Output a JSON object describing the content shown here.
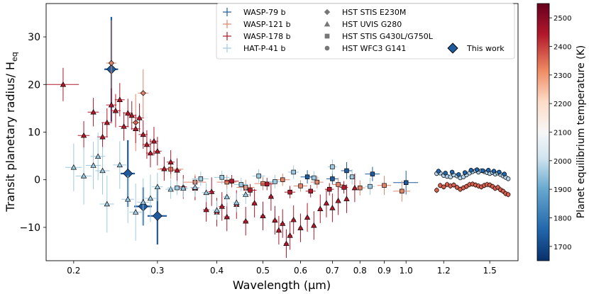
{
  "chart_data": {
    "type": "scatter",
    "xlabel": "Wavelength (μm)",
    "ylabel_main": "Transit planetary radius/ H",
    "ylabel_sub": "eq",
    "xscale": "log",
    "xlim": [
      0.175,
      1.72
    ],
    "ylim": [
      -17,
      37
    ],
    "xticks": [
      0.2,
      0.3,
      0.4,
      0.5,
      0.6,
      0.7,
      0.8,
      0.9,
      1.0,
      1.2,
      1.5
    ],
    "xtick_labels": [
      "0.2",
      "0.3",
      "0.4",
      "0.5",
      "0.6",
      "0.7",
      "0.8",
      "0.9",
      "1.0",
      "1.2",
      "1.5"
    ],
    "yticks": [
      -10,
      0,
      10,
      20,
      30
    ],
    "ytick_labels": [
      "−10",
      "0",
      "10",
      "20",
      "30"
    ],
    "legend_loc": "top-right",
    "planet_legend": [
      {
        "name": "WASP-79 b",
        "color": "#1f5a9d"
      },
      {
        "name": "WASP-121 b",
        "color": "#e0856a"
      },
      {
        "name": "WASP-178 b",
        "color": "#b2182b"
      },
      {
        "name": "HAT-P-41 b",
        "color": "#9ecae1"
      }
    ],
    "instrument_legend": [
      {
        "name": "HST STIS E230M",
        "marker": "diamond"
      },
      {
        "name": "HST UVIS G280",
        "marker": "triangle"
      },
      {
        "name": "HST STIS G430L/G750L",
        "marker": "square"
      },
      {
        "name": "HST WFC3 G141",
        "marker": "circle"
      }
    ],
    "this_work_label": "This work",
    "colorbar": {
      "label": "Planet equilibrium temperature (K)",
      "range": [
        1650,
        2550
      ],
      "ticks": [
        1700,
        1800,
        1900,
        2000,
        2100,
        2200,
        2300,
        2400,
        2500
      ],
      "tick_labels": [
        "1700",
        "1800",
        "1900",
        "2000",
        "2100",
        "2200",
        "2300",
        "2400",
        "2500"
      ]
    },
    "series": [
      {
        "name": "WASP-79 b",
        "color": "#1f5a9d",
        "marker": "diamond",
        "this_work": true,
        "points": [
          [
            0.24,
            23.2,
            11,
            0.008
          ],
          [
            0.26,
            1.3,
            7,
            0.009
          ],
          [
            0.28,
            -5.6,
            4,
            0.012
          ],
          [
            0.3,
            -7.6,
            6,
            0.014
          ]
        ]
      },
      {
        "name": "WASP-79 b",
        "color": "#1f5a9d",
        "marker": "square",
        "points": [
          [
            0.62,
            0.6,
            1.4,
            0.02
          ],
          [
            0.7,
            0.2,
            1.2,
            0.02
          ],
          [
            0.75,
            1.9,
            1.8,
            0.02
          ],
          [
            0.85,
            1.2,
            1.5,
            0.03
          ],
          [
            1.0,
            -0.6,
            2.5,
            0.06
          ]
        ]
      },
      {
        "name": "WASP-121 b",
        "color": "#e0856a",
        "marker": "diamond",
        "points": [
          [
            0.24,
            24.5,
            9,
            0.006
          ],
          [
            0.28,
            18.2,
            5,
            0.007
          ],
          [
            0.27,
            12.0,
            6,
            0.006
          ]
        ]
      },
      {
        "name": "WASP-121 b",
        "color": "#e0856a",
        "marker": "square",
        "points": [
          [
            0.32,
            2.2,
            2,
            0.02
          ],
          [
            0.36,
            -0.5,
            1.6,
            0.02
          ],
          [
            0.42,
            -0.5,
            1.5,
            0.02
          ],
          [
            0.46,
            -1.6,
            1.6,
            0.02
          ],
          [
            0.5,
            -0.8,
            1.4,
            0.02
          ],
          [
            0.55,
            0.0,
            1.3,
            0.02
          ],
          [
            0.6,
            -1.3,
            1.2,
            0.02
          ],
          [
            0.65,
            -0.5,
            1.3,
            0.02
          ],
          [
            0.72,
            -1.0,
            1.4,
            0.02
          ],
          [
            0.8,
            -1.7,
            1.6,
            0.02
          ],
          [
            0.9,
            -1.2,
            2.0,
            0.03
          ],
          [
            0.98,
            -2.4,
            2.2,
            0.04
          ]
        ]
      },
      {
        "name": "WASP-121 b",
        "color": "#d6604d",
        "marker": "circle",
        "points": [
          [
            1.16,
            -2.2,
            0.6,
            0
          ],
          [
            1.18,
            -1.2,
            0.6,
            0
          ],
          [
            1.2,
            -1.5,
            0.6,
            0
          ],
          [
            1.22,
            -1.0,
            0.6,
            0
          ],
          [
            1.24,
            -1.3,
            0.6,
            0
          ],
          [
            1.26,
            -1.1,
            0.6,
            0
          ],
          [
            1.28,
            -1.6,
            0.6,
            0
          ],
          [
            1.3,
            -2.0,
            0.6,
            0
          ],
          [
            1.32,
            -1.7,
            0.6,
            0
          ],
          [
            1.34,
            -1.4,
            0.6,
            0
          ],
          [
            1.36,
            -1.0,
            0.6,
            0
          ],
          [
            1.38,
            -0.9,
            0.6,
            0
          ],
          [
            1.4,
            -1.1,
            0.6,
            0
          ],
          [
            1.42,
            -1.3,
            0.6,
            0
          ],
          [
            1.44,
            -1.5,
            0.6,
            0
          ],
          [
            1.46,
            -1.2,
            0.6,
            0
          ],
          [
            1.48,
            -1.0,
            0.6,
            0
          ],
          [
            1.5,
            -1.1,
            0.6,
            0
          ],
          [
            1.52,
            -1.4,
            0.6,
            0
          ],
          [
            1.54,
            -1.8,
            0.6,
            0
          ],
          [
            1.56,
            -1.6,
            0.6,
            0
          ],
          [
            1.58,
            -2.1,
            0.6,
            0
          ],
          [
            1.6,
            -2.4,
            0.6,
            0
          ],
          [
            1.62,
            -2.9,
            0.6,
            0
          ],
          [
            1.64,
            -3.1,
            0.6,
            0
          ]
        ]
      },
      {
        "name": "WASP-178 b",
        "color": "#b2182b",
        "marker": "triangle",
        "points": [
          [
            0.19,
            20.0,
            3.5,
            0.015
          ],
          [
            0.21,
            9.3,
            3,
            0.006
          ],
          [
            0.22,
            14.2,
            3,
            0.006
          ],
          [
            0.23,
            9.0,
            3,
            0.006
          ],
          [
            0.235,
            12.0,
            3,
            0.006
          ],
          [
            0.24,
            15.7,
            3.5,
            0.006
          ],
          [
            0.245,
            14.5,
            3.5,
            0.006
          ],
          [
            0.25,
            16.8,
            3.5,
            0.006
          ],
          [
            0.255,
            11.2,
            3,
            0.006
          ],
          [
            0.26,
            14.0,
            3,
            0.006
          ],
          [
            0.265,
            13.5,
            3,
            0.006
          ],
          [
            0.27,
            10.7,
            3,
            0.006
          ],
          [
            0.275,
            13.0,
            3,
            0.006
          ],
          [
            0.28,
            9.5,
            3,
            0.006
          ],
          [
            0.285,
            7.4,
            3,
            0.006
          ],
          [
            0.29,
            5.6,
            3,
            0.006
          ],
          [
            0.295,
            8.1,
            3,
            0.006
          ],
          [
            0.3,
            6.0,
            3,
            0.006
          ],
          [
            0.31,
            2.3,
            2.5,
            0.006
          ],
          [
            0.32,
            3.7,
            2.5,
            0.006
          ],
          [
            0.33,
            2.0,
            2.5,
            0.006
          ],
          [
            0.34,
            -1.5,
            2.5,
            0.006
          ],
          [
            0.36,
            -1.8,
            2.5,
            0.006
          ],
          [
            0.38,
            -6.3,
            2.5,
            0.006
          ],
          [
            0.39,
            -2.5,
            3,
            0.006
          ],
          [
            0.4,
            -6.8,
            3,
            0.006
          ],
          [
            0.41,
            -5.6,
            3,
            0.006
          ],
          [
            0.42,
            -7.8,
            3,
            0.006
          ],
          [
            0.44,
            -5.2,
            3,
            0.006
          ],
          [
            0.46,
            -8.7,
            3,
            0.006
          ],
          [
            0.48,
            -4.9,
            3,
            0.006
          ],
          [
            0.5,
            -7.6,
            3,
            0.006
          ],
          [
            0.52,
            -3.5,
            3,
            0.006
          ],
          [
            0.53,
            -8.5,
            3,
            0.006
          ],
          [
            0.54,
            -10.6,
            3,
            0.006
          ],
          [
            0.55,
            -9.2,
            3,
            0.006
          ],
          [
            0.56,
            -13.4,
            3,
            0.006
          ],
          [
            0.57,
            -11.7,
            3,
            0.006
          ],
          [
            0.58,
            -8.4,
            3,
            0.006
          ],
          [
            0.6,
            -10.1,
            3,
            0.006
          ],
          [
            0.62,
            -7.9,
            3,
            0.006
          ],
          [
            0.64,
            -9.6,
            3,
            0.006
          ],
          [
            0.66,
            -6.1,
            3,
            0.006
          ],
          [
            0.68,
            -4.9,
            3,
            0.006
          ],
          [
            0.7,
            -5.9,
            3,
            0.006
          ],
          [
            0.72,
            -4.4,
            3,
            0.006
          ],
          [
            0.75,
            -4.0,
            3,
            0.006
          ],
          [
            0.78,
            -1.7,
            3,
            0.006
          ]
        ]
      },
      {
        "name": "WASP-178 b",
        "color": "#b2182b",
        "marker": "square",
        "points": [
          [
            0.43,
            -0.3,
            1.3,
            0.015
          ],
          [
            0.47,
            -2.2,
            1.3,
            0.015
          ],
          [
            0.51,
            -0.9,
            1.3,
            0.015
          ],
          [
            0.57,
            -2.6,
            1.3,
            0.015
          ],
          [
            0.63,
            -2.4,
            1.3,
            0.015
          ],
          [
            0.69,
            -2.0,
            1.3,
            0.015
          ],
          [
            0.74,
            -1.6,
            1.3,
            0.015
          ]
        ]
      },
      {
        "name": "HAT-P-41 b",
        "color": "#9ecae1",
        "marker": "triangle",
        "points": [
          [
            0.2,
            2.6,
            5,
            0.008
          ],
          [
            0.21,
            0.8,
            6,
            0.008
          ],
          [
            0.22,
            3.0,
            5,
            0.008
          ],
          [
            0.225,
            4.9,
            5,
            0.008
          ],
          [
            0.23,
            1.9,
            5,
            0.008
          ],
          [
            0.235,
            -5.1,
            6,
            0.008
          ],
          [
            0.25,
            3.1,
            5,
            0.008
          ],
          [
            0.26,
            -4.1,
            5,
            0.008
          ],
          [
            0.27,
            -6.8,
            6,
            0.008
          ],
          [
            0.28,
            -4.7,
            5,
            0.008
          ],
          [
            0.29,
            -3.9,
            5,
            0.008
          ],
          [
            0.3,
            -1.5,
            3,
            0.008
          ],
          [
            0.32,
            -2.0,
            2,
            0.008
          ],
          [
            0.34,
            -1.8,
            2,
            0.008
          ],
          [
            0.36,
            -1.6,
            2,
            0.008
          ],
          [
            0.38,
            -2.7,
            2,
            0.008
          ],
          [
            0.4,
            -6.4,
            2,
            0.008
          ],
          [
            0.42,
            -3.6,
            2,
            0.008
          ],
          [
            0.44,
            -4.8,
            2,
            0.008
          ],
          [
            0.46,
            -3.1,
            2,
            0.008
          ]
        ]
      },
      {
        "name": "HAT-P-41 b",
        "color": "#9ecae1",
        "marker": "square",
        "points": [
          [
            0.33,
            -1.7,
            1.5,
            0.015
          ],
          [
            0.37,
            0.2,
            1.5,
            0.015
          ],
          [
            0.41,
            0.5,
            1.4,
            0.015
          ],
          [
            0.45,
            -1.0,
            1.4,
            0.015
          ],
          [
            0.49,
            0.8,
            1.4,
            0.015
          ],
          [
            0.53,
            -0.4,
            1.4,
            0.015
          ],
          [
            0.58,
            1.6,
            1.4,
            0.015
          ],
          [
            0.64,
            0.4,
            1.4,
            0.015
          ],
          [
            0.7,
            2.7,
            1.6,
            0.015
          ],
          [
            0.77,
            0.6,
            1.6,
            0.015
          ],
          [
            0.84,
            -1.4,
            1.8,
            0.02
          ]
        ]
      },
      {
        "name": "HAT-P-41 b",
        "color": "#b3d4ea",
        "marker": "circle",
        "points": [
          [
            1.16,
            1.3,
            0.5,
            0
          ],
          [
            1.18,
            1.4,
            0.5,
            0
          ],
          [
            1.2,
            0.9,
            0.5,
            0
          ],
          [
            1.22,
            0.7,
            0.5,
            0
          ],
          [
            1.24,
            0.6,
            0.5,
            0
          ],
          [
            1.26,
            1.0,
            0.5,
            0
          ],
          [
            1.28,
            0.8,
            0.5,
            0
          ],
          [
            1.3,
            0.4,
            0.5,
            0
          ],
          [
            1.32,
            0.6,
            0.5,
            0
          ],
          [
            1.34,
            1.0,
            0.5,
            0
          ],
          [
            1.36,
            1.4,
            0.5,
            0
          ],
          [
            1.38,
            1.7,
            0.5,
            0
          ],
          [
            1.4,
            1.9,
            0.5,
            0
          ],
          [
            1.42,
            1.6,
            0.5,
            0
          ],
          [
            1.44,
            1.9,
            0.5,
            0
          ],
          [
            1.46,
            1.7,
            0.5,
            0
          ],
          [
            1.48,
            1.5,
            0.5,
            0
          ],
          [
            1.5,
            1.3,
            0.5,
            0
          ],
          [
            1.52,
            1.5,
            0.5,
            0
          ],
          [
            1.54,
            1.2,
            0.5,
            0
          ],
          [
            1.56,
            1.4,
            0.5,
            0
          ],
          [
            1.58,
            1.1,
            0.5,
            0
          ],
          [
            1.6,
            0.8,
            0.5,
            0
          ],
          [
            1.62,
            0.5,
            0.5,
            0
          ],
          [
            1.64,
            0.2,
            0.5,
            0
          ]
        ]
      },
      {
        "name": "WASP-79 b",
        "color": "#2166ac",
        "marker": "circle",
        "points": [
          [
            1.17,
            1.8,
            0.5,
            0
          ],
          [
            1.21,
            1.4,
            0.5,
            0
          ],
          [
            1.25,
            1.6,
            0.5,
            0
          ],
          [
            1.29,
            1.1,
            0.5,
            0
          ],
          [
            1.33,
            1.5,
            0.5,
            0
          ],
          [
            1.37,
            2.0,
            0.5,
            0
          ],
          [
            1.41,
            2.1,
            0.5,
            0
          ],
          [
            1.45,
            1.9,
            0.5,
            0
          ],
          [
            1.49,
            2.0,
            0.5,
            0
          ],
          [
            1.53,
            1.8,
            0.5,
            0
          ],
          [
            1.57,
            1.6,
            0.5,
            0
          ],
          [
            1.61,
            1.2,
            0.5,
            0
          ]
        ]
      }
    ]
  }
}
